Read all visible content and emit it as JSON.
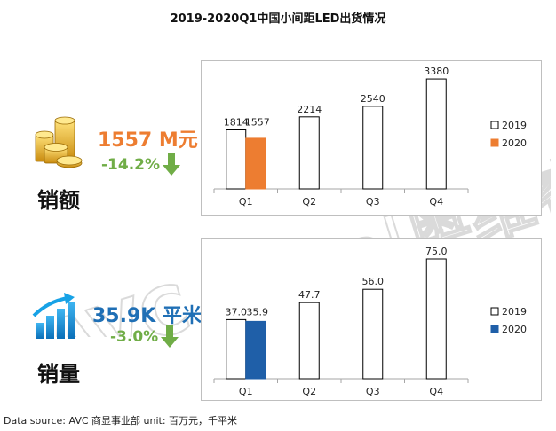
{
  "title": "2019-2020Q1中国小间距LED出货情况",
  "footer": "Data source: AVC 商显事业部 unit: 百万元，千平米",
  "watermark": "AVC Revo|奥维睿沃",
  "kpis": {
    "sales": {
      "value": "1557 M元",
      "change": "-14.2%",
      "label": "销额",
      "value_color": "#ED7D31",
      "change_color": "#70AD47",
      "icon": "gold-coins-icon"
    },
    "volume": {
      "value": "35.9K 平米",
      "change": "-3.0%",
      "label": "销量",
      "value_color": "#1F6FB5",
      "change_color": "#70AD47",
      "icon": "bar-growth-icon"
    }
  },
  "chart_data": [
    {
      "type": "bar",
      "categories": [
        "Q1",
        "Q2",
        "Q3",
        "Q4"
      ],
      "series": [
        {
          "name": "2019",
          "values": [
            1814,
            2214,
            2540,
            3380
          ],
          "color": "#ffffff",
          "stroke": "#000000"
        },
        {
          "name": "2020",
          "values": [
            1557,
            null,
            null,
            null
          ],
          "color": "#ED7D31",
          "stroke": "#ED7D31"
        }
      ],
      "data_labels": [
        [
          "1814",
          "2214",
          "2540",
          "3380"
        ],
        [
          "1557",
          "",
          "",
          ""
        ]
      ],
      "ylim": [
        0,
        3600
      ],
      "legend": "right",
      "grid": false
    },
    {
      "type": "bar",
      "categories": [
        "Q1",
        "Q2",
        "Q3",
        "Q4"
      ],
      "series": [
        {
          "name": "2019",
          "values": [
            37.0,
            47.7,
            56.0,
            75.0
          ],
          "color": "#ffffff",
          "stroke": "#000000"
        },
        {
          "name": "2020",
          "values": [
            35.9,
            null,
            null,
            null
          ],
          "color": "#1F5FA8",
          "stroke": "#1F5FA8"
        }
      ],
      "data_labels": [
        [
          "37.0",
          "47.7",
          "56.0",
          "75.0"
        ],
        [
          "35.9",
          "",
          "",
          ""
        ]
      ],
      "ylim": [
        0,
        80
      ],
      "legend": "right",
      "grid": false
    }
  ]
}
